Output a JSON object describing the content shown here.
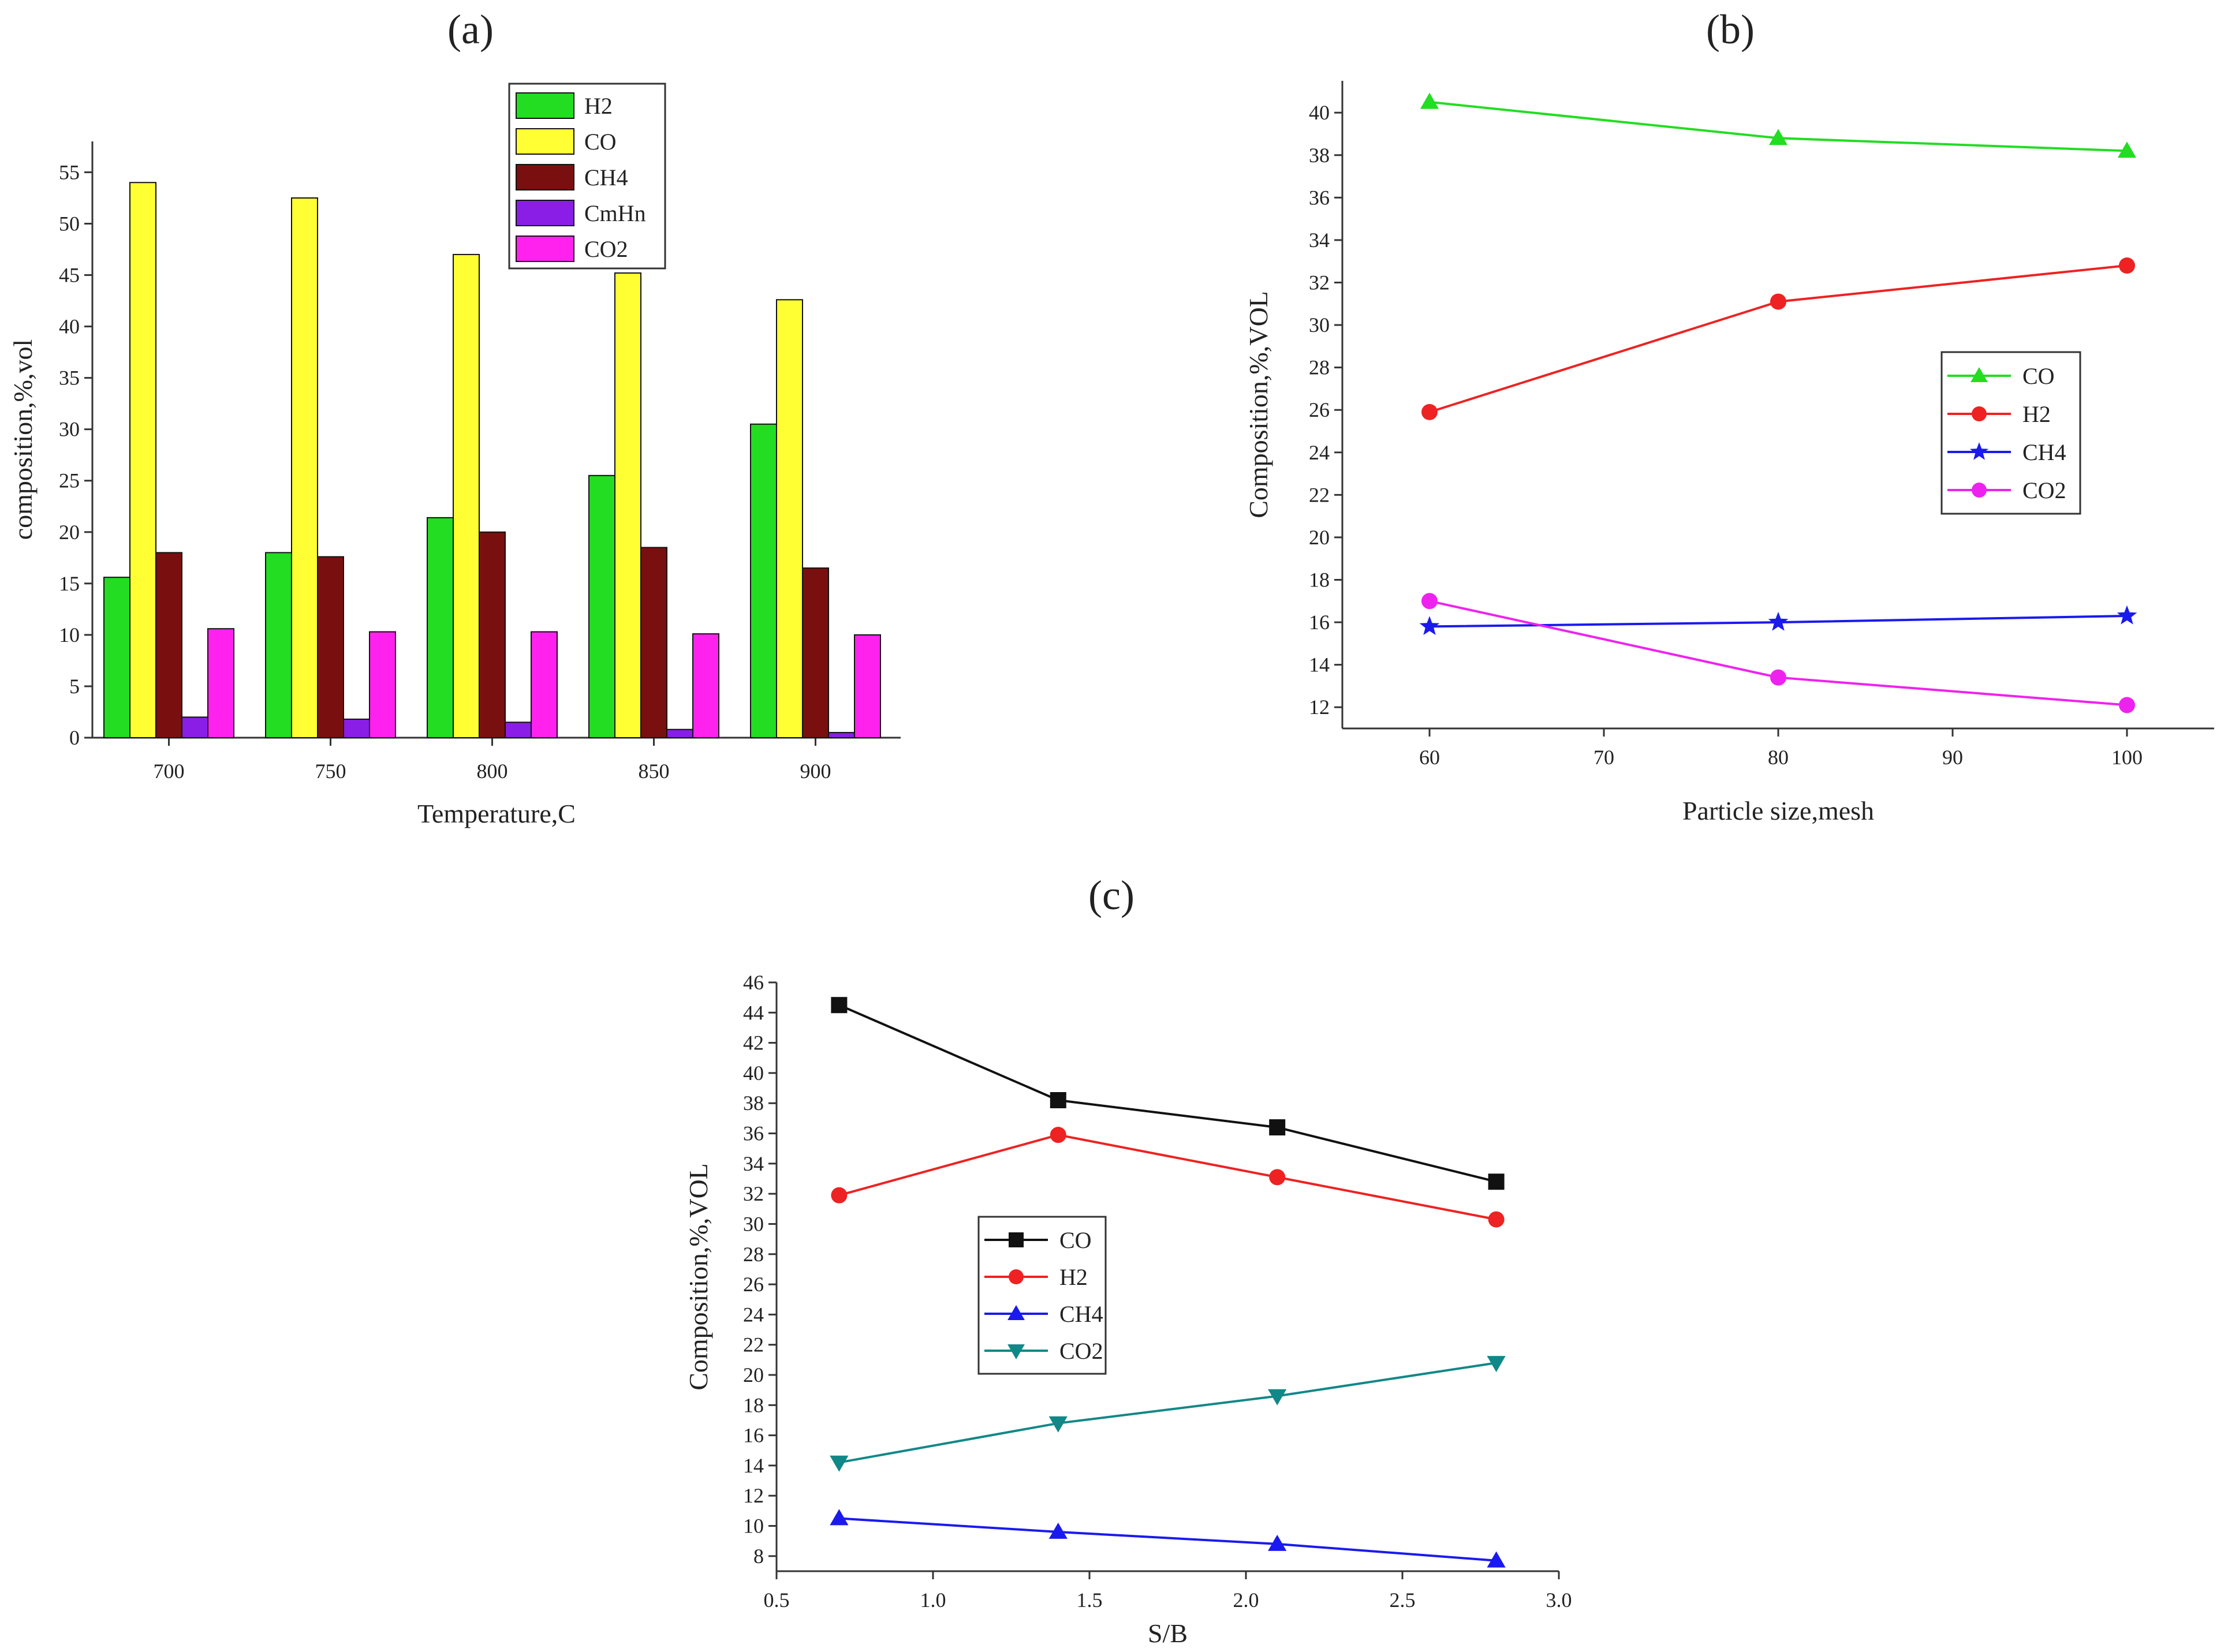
{
  "figure": {
    "panels": {
      "a": "(a)",
      "b": "(b)",
      "c": "(c)"
    }
  },
  "chart_data": [
    {
      "id": "a",
      "type": "bar",
      "title": "",
      "xlabel": "Temperature,C",
      "ylabel": "composition,%,vol",
      "categories": [
        "700",
        "750",
        "800",
        "850",
        "900"
      ],
      "ylim": [
        0,
        58
      ],
      "yticks": [
        0,
        5,
        10,
        15,
        20,
        25,
        30,
        35,
        40,
        45,
        50,
        55
      ],
      "legend_position": "top-center",
      "series": [
        {
          "name": "H2",
          "color": "#22dd22",
          "values": [
            15.6,
            18.0,
            21.4,
            25.5,
            30.5
          ]
        },
        {
          "name": "CO",
          "color": "#ffff33",
          "values": [
            54.0,
            52.5,
            47.0,
            45.2,
            42.6
          ]
        },
        {
          "name": "CH4",
          "color": "#7a0f0f",
          "values": [
            18.0,
            17.6,
            20.0,
            18.5,
            16.5
          ]
        },
        {
          "name": "CmHn",
          "color": "#8a1ee6",
          "values": [
            2.0,
            1.8,
            1.5,
            0.8,
            0.5
          ]
        },
        {
          "name": "CO2",
          "color": "#ff22ee",
          "values": [
            10.6,
            10.3,
            10.3,
            10.1,
            10.0
          ]
        }
      ]
    },
    {
      "id": "b",
      "type": "line",
      "title": "",
      "xlabel": "Particle size,mesh",
      "ylabel": "Composition,%,VOL",
      "xlim": [
        55,
        105
      ],
      "ylim": [
        11,
        41.5
      ],
      "xticks": [
        60,
        70,
        80,
        90,
        100
      ],
      "yticks": [
        12,
        14,
        16,
        18,
        20,
        22,
        24,
        26,
        28,
        30,
        32,
        34,
        36,
        38,
        40
      ],
      "x": [
        60,
        80,
        100
      ],
      "legend_position": "center-right",
      "series": [
        {
          "name": "CO",
          "color": "#22dd22",
          "marker": "triangle-up",
          "values": [
            40.5,
            38.8,
            38.2
          ]
        },
        {
          "name": "H2",
          "color": "#ee2222",
          "marker": "circle",
          "values": [
            25.9,
            31.1,
            32.8
          ]
        },
        {
          "name": "CH4",
          "color": "#1a1aee",
          "marker": "star",
          "values": [
            15.8,
            16.0,
            16.3
          ]
        },
        {
          "name": "CO2",
          "color": "#ee22ee",
          "marker": "circle",
          "values": [
            17.0,
            13.4,
            12.1
          ]
        }
      ]
    },
    {
      "id": "c",
      "type": "line",
      "title": "",
      "xlabel": "S/B",
      "ylabel": "Composition,%,VOL",
      "xlim": [
        0.5,
        3.0
      ],
      "ylim": [
        7,
        46
      ],
      "xticks": [
        "0.5",
        "1.0",
        "1.5",
        "2.0",
        "2.5",
        "3.0"
      ],
      "yticks": [
        8,
        10,
        12,
        14,
        16,
        18,
        20,
        22,
        24,
        26,
        28,
        30,
        32,
        34,
        36,
        38,
        40,
        42,
        44,
        46
      ],
      "x": [
        0.7,
        1.4,
        2.1,
        2.8
      ],
      "legend_position": "center-left",
      "series": [
        {
          "name": "CO",
          "color": "#111111",
          "marker": "square",
          "values": [
            44.5,
            38.2,
            36.4,
            32.8
          ]
        },
        {
          "name": "H2",
          "color": "#ee2222",
          "marker": "circle",
          "values": [
            31.9,
            35.9,
            33.1,
            30.3
          ]
        },
        {
          "name": "CH4",
          "color": "#1a1aee",
          "marker": "triangle-up",
          "values": [
            10.5,
            9.6,
            8.8,
            7.7
          ]
        },
        {
          "name": "CO2",
          "color": "#118888",
          "marker": "triangle-down",
          "values": [
            14.2,
            16.8,
            18.6,
            20.8
          ]
        }
      ]
    }
  ]
}
